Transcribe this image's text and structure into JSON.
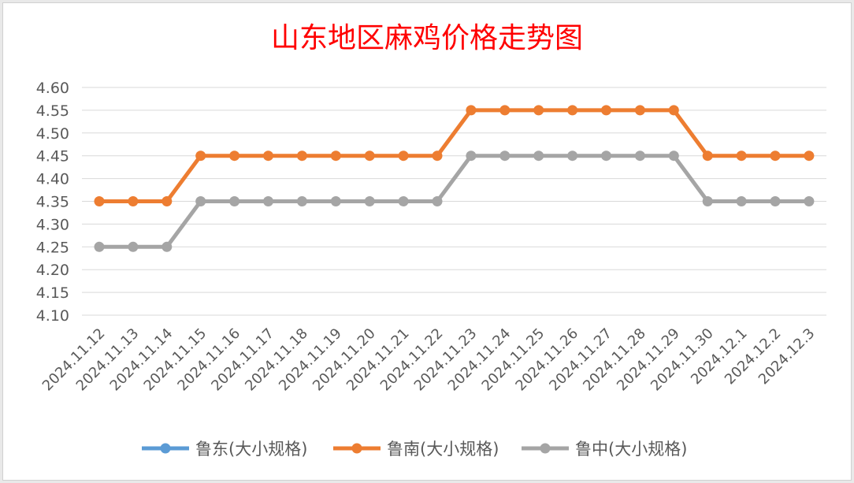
{
  "chart_data": {
    "type": "line",
    "title": "山东地区麻鸡价格走势图",
    "xlabel": "",
    "ylabel": "",
    "categories": [
      "2024.11.12",
      "2024.11.13",
      "2024.11.14",
      "2024.11.15",
      "2024.11.16",
      "2024.11.17",
      "2024.11.18",
      "2024.11.19",
      "2024.11.20",
      "2024.11.21",
      "2024.11.22",
      "2024.11.23",
      "2024.11.24",
      "2024.11.25",
      "2024.11.26",
      "2024.11.27",
      "2024.11.28",
      "2024.11.29",
      "2024.11.30",
      "2024.12.1",
      "2024.12.2",
      "2024.12.3"
    ],
    "ylim": [
      4.1,
      4.6
    ],
    "yticks": [
      "4.60",
      "4.55",
      "4.50",
      "4.45",
      "4.40",
      "4.35",
      "4.30",
      "4.25",
      "4.20",
      "4.15",
      "4.10"
    ],
    "grid": true,
    "legend_position": "bottom",
    "series": [
      {
        "name": "鲁东(大小规格)",
        "color": "#5b9bd5",
        "values": [
          null,
          null,
          null,
          null,
          null,
          null,
          null,
          null,
          null,
          null,
          null,
          null,
          null,
          null,
          null,
          null,
          null,
          null,
          null,
          null,
          null,
          null
        ]
      },
      {
        "name": "鲁南(大小规格)",
        "color": "#ed7d31",
        "values": [
          4.35,
          4.35,
          4.35,
          4.45,
          4.45,
          4.45,
          4.45,
          4.45,
          4.45,
          4.45,
          4.45,
          4.55,
          4.55,
          4.55,
          4.55,
          4.55,
          4.55,
          4.55,
          4.45,
          4.45,
          4.45,
          4.45
        ]
      },
      {
        "name": "鲁中(大小规格)",
        "color": "#a5a5a5",
        "values": [
          4.25,
          4.25,
          4.25,
          4.35,
          4.35,
          4.35,
          4.35,
          4.35,
          4.35,
          4.35,
          4.35,
          4.45,
          4.45,
          4.45,
          4.45,
          4.45,
          4.45,
          4.45,
          4.35,
          4.35,
          4.35,
          4.35
        ]
      }
    ]
  }
}
